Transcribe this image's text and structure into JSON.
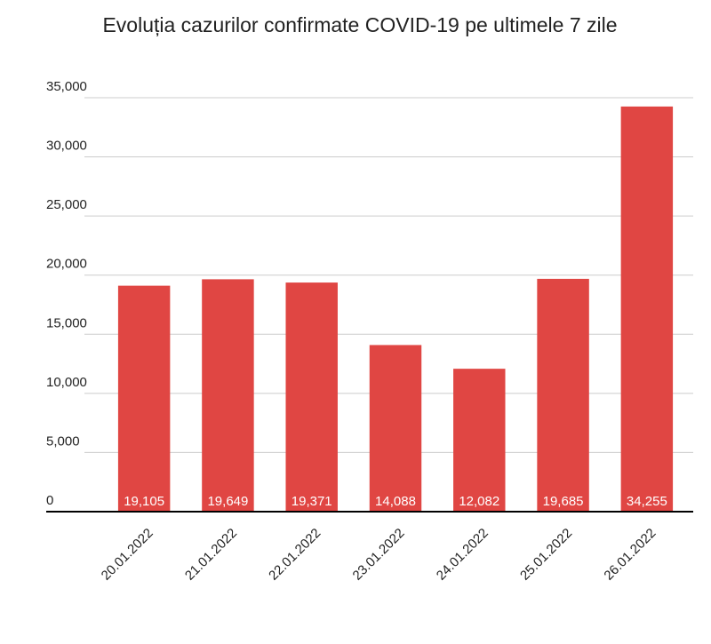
{
  "chart_data": {
    "type": "bar",
    "title": "Evoluția cazurilor confirmate COVID-19 pe ultimele 7 zile",
    "categories": [
      "20.01.2022",
      "21.01.2022",
      "22.01.2022",
      "23.01.2022",
      "24.01.2022",
      "25.01.2022",
      "26.01.2022"
    ],
    "values": [
      19105,
      19649,
      19371,
      14088,
      12082,
      19685,
      34255
    ],
    "value_labels": [
      "19,105",
      "19,649",
      "19,371",
      "14,088",
      "12,082",
      "19,685",
      "34,255"
    ],
    "color": "#e04643",
    "ylim": [
      0,
      35000
    ],
    "yticks": [
      0,
      {
        "value": 5000,
        "label": "5,000"
      },
      {
        "value": 10000,
        "label": "10,000"
      },
      {
        "value": 15000,
        "label": "15,000"
      },
      {
        "value": 20000,
        "label": "20,000"
      },
      {
        "value": 25000,
        "label": "25,000"
      },
      {
        "value": 30000,
        "label": "30,000"
      },
      {
        "value": 35000,
        "label": "35,000"
      }
    ],
    "grid": true
  }
}
